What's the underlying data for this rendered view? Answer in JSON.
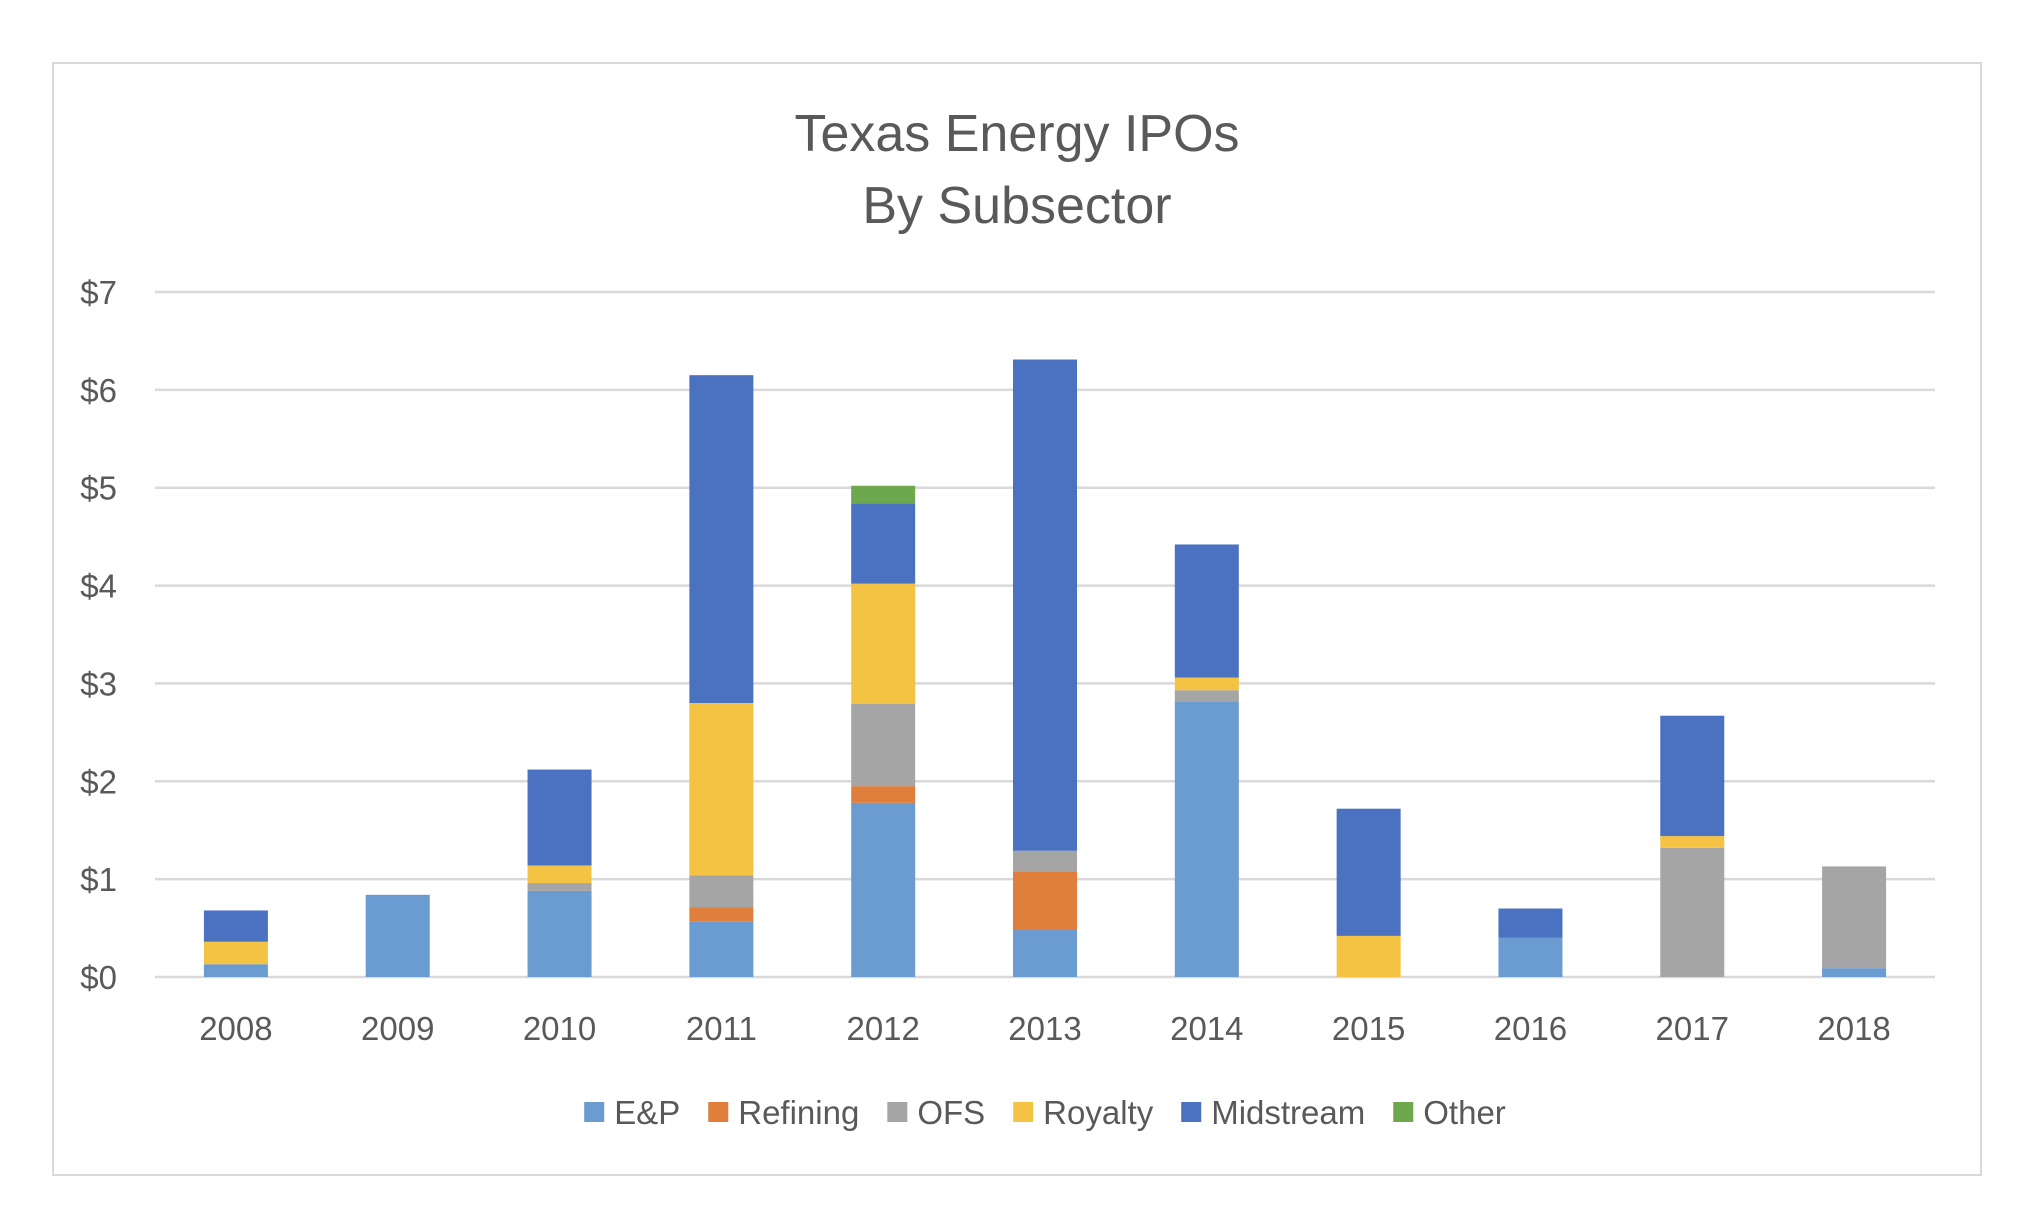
{
  "chart_data": {
    "type": "bar",
    "stacked": true,
    "title": [
      "Texas Energy IPOs",
      "By Subsector"
    ],
    "xlabel": "",
    "ylabel": "",
    "categories": [
      "2008",
      "2009",
      "2010",
      "2011",
      "2012",
      "2013",
      "2014",
      "2015",
      "2016",
      "2017",
      "2018"
    ],
    "ylim": [
      0,
      7
    ],
    "yticks": [
      0,
      1,
      2,
      3,
      4,
      5,
      6,
      7
    ],
    "ytick_labels": [
      "$0",
      "$1",
      "$2",
      "$3",
      "$4",
      "$5",
      "$6",
      "$7"
    ],
    "grid": true,
    "legend_position": "bottom",
    "series": [
      {
        "name": "E&P",
        "color": "#6a9bd1",
        "values": [
          0.13,
          0.84,
          0.88,
          0.57,
          1.78,
          0.48,
          2.81,
          0.0,
          0.4,
          0.0,
          0.09
        ]
      },
      {
        "name": "Refining",
        "color": "#e07f3b",
        "values": [
          0.0,
          0.0,
          0.0,
          0.14,
          0.17,
          0.6,
          0.0,
          0.0,
          0.0,
          0.0,
          0.0
        ]
      },
      {
        "name": "OFS",
        "color": "#a5a5a5",
        "values": [
          0.0,
          0.0,
          0.08,
          0.33,
          0.84,
          0.21,
          0.12,
          0.0,
          0.0,
          1.32,
          1.04
        ]
      },
      {
        "name": "Royalty",
        "color": "#f5c343",
        "values": [
          0.23,
          0.0,
          0.18,
          1.76,
          1.23,
          0.0,
          0.13,
          0.42,
          0.0,
          0.12,
          0.0
        ]
      },
      {
        "name": "Midstream",
        "color": "#4a72c1",
        "values": [
          0.32,
          0.0,
          0.98,
          3.35,
          0.82,
          5.02,
          1.36,
          1.3,
          0.3,
          1.23,
          0.0
        ]
      },
      {
        "name": "Other",
        "color": "#6ea84e",
        "values": [
          0.0,
          0.0,
          0.0,
          0.0,
          0.18,
          0.0,
          0.0,
          0.0,
          0.0,
          0.0,
          0.0
        ]
      }
    ]
  },
  "style": {
    "gridline_color": "#d9d9d9",
    "text_color": "#595959",
    "frame_color": "#d9d9d9"
  }
}
